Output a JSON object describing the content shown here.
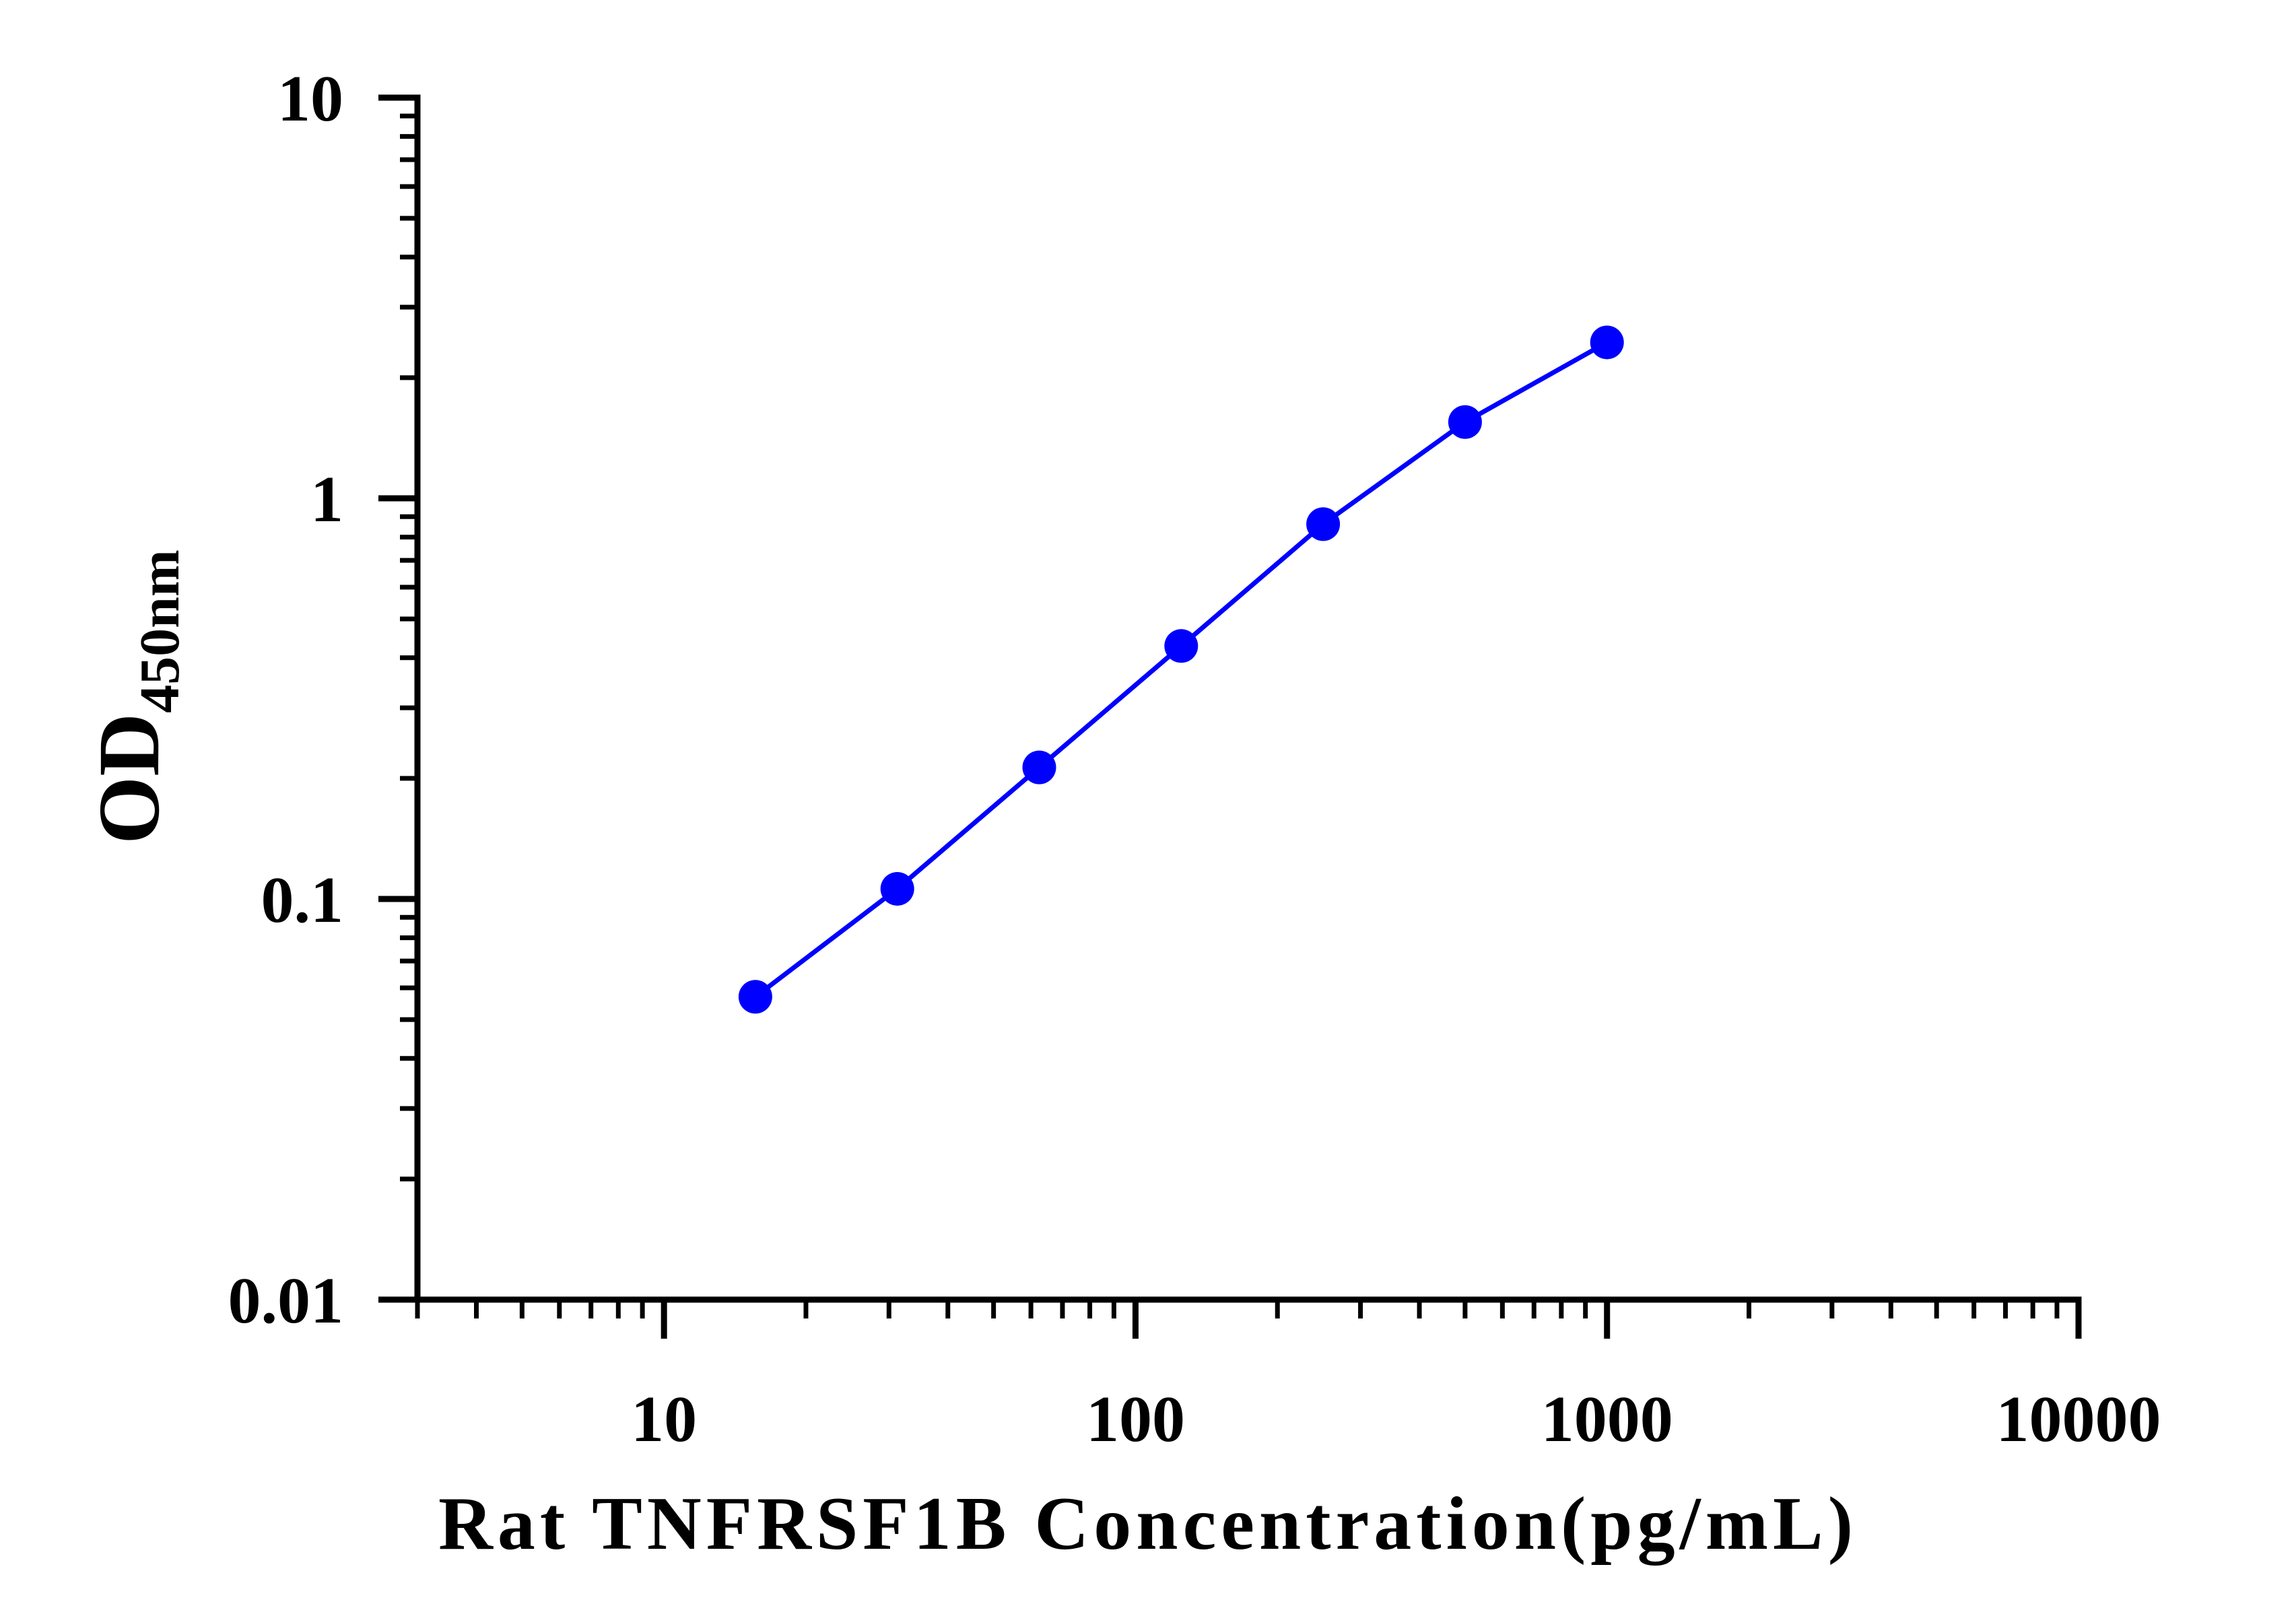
{
  "chart_data": {
    "type": "line",
    "title": "",
    "xlabel": "Rat TNFRSF1B Concentration(pg/mL)",
    "ylabel": {
      "main": "OD",
      "subscript": "450nm"
    },
    "x_scale": "log",
    "y_scale": "log",
    "xlim": [
      3,
      10000
    ],
    "ylim": [
      0.01,
      10
    ],
    "x_ticks": [
      {
        "value": 10,
        "label": "10"
      },
      {
        "value": 100,
        "label": "100"
      },
      {
        "value": 1000,
        "label": "1000"
      },
      {
        "value": 10000,
        "label": "10000"
      }
    ],
    "y_ticks": [
      {
        "value": 0.01,
        "label": "0.01"
      },
      {
        "value": 0.1,
        "label": "0.1"
      },
      {
        "value": 1,
        "label": "1"
      },
      {
        "value": 10,
        "label": "10"
      }
    ],
    "grid": false,
    "legend": "none",
    "series": [
      {
        "color": "#0000ff",
        "marker": "circle",
        "x": [
          15.625,
          31.25,
          62.5,
          125,
          250,
          500,
          1000
        ],
        "y": [
          0.057,
          0.106,
          0.213,
          0.428,
          0.862,
          1.55,
          2.45
        ]
      }
    ]
  },
  "colors": {
    "axis": "#000000",
    "series": "#0000ff",
    "background": "#ffffff"
  }
}
